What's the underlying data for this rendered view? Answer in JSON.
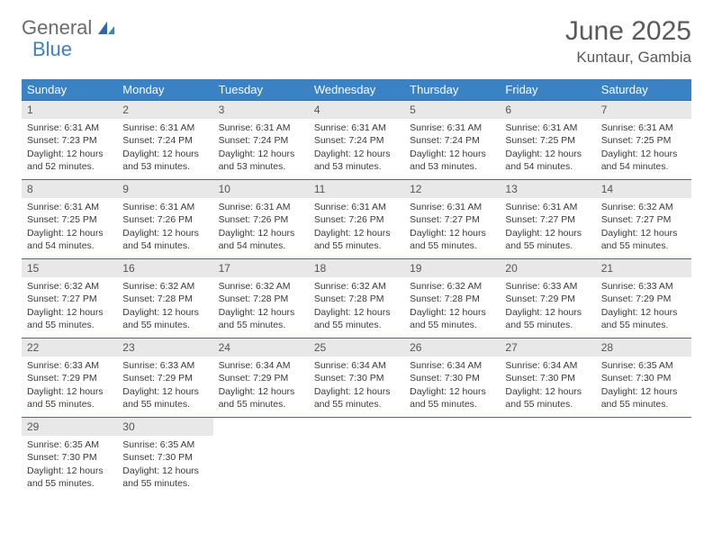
{
  "brand": {
    "word1": "General",
    "word2": "Blue"
  },
  "title": "June 2025",
  "location": "Kuntaur, Gambia",
  "colors": {
    "header_bg": "#3b82c4",
    "header_fg": "#ffffff",
    "daynum_bg": "#e8e8e8",
    "row_border": "#3b6da0",
    "text": "#3a3a3a"
  },
  "weekdays": [
    "Sunday",
    "Monday",
    "Tuesday",
    "Wednesday",
    "Thursday",
    "Friday",
    "Saturday"
  ],
  "weeks": [
    [
      {
        "n": "1",
        "sr": "6:31 AM",
        "ss": "7:23 PM",
        "dl": "12 hours and 52 minutes."
      },
      {
        "n": "2",
        "sr": "6:31 AM",
        "ss": "7:24 PM",
        "dl": "12 hours and 53 minutes."
      },
      {
        "n": "3",
        "sr": "6:31 AM",
        "ss": "7:24 PM",
        "dl": "12 hours and 53 minutes."
      },
      {
        "n": "4",
        "sr": "6:31 AM",
        "ss": "7:24 PM",
        "dl": "12 hours and 53 minutes."
      },
      {
        "n": "5",
        "sr": "6:31 AM",
        "ss": "7:24 PM",
        "dl": "12 hours and 53 minutes."
      },
      {
        "n": "6",
        "sr": "6:31 AM",
        "ss": "7:25 PM",
        "dl": "12 hours and 54 minutes."
      },
      {
        "n": "7",
        "sr": "6:31 AM",
        "ss": "7:25 PM",
        "dl": "12 hours and 54 minutes."
      }
    ],
    [
      {
        "n": "8",
        "sr": "6:31 AM",
        "ss": "7:25 PM",
        "dl": "12 hours and 54 minutes."
      },
      {
        "n": "9",
        "sr": "6:31 AM",
        "ss": "7:26 PM",
        "dl": "12 hours and 54 minutes."
      },
      {
        "n": "10",
        "sr": "6:31 AM",
        "ss": "7:26 PM",
        "dl": "12 hours and 54 minutes."
      },
      {
        "n": "11",
        "sr": "6:31 AM",
        "ss": "7:26 PM",
        "dl": "12 hours and 55 minutes."
      },
      {
        "n": "12",
        "sr": "6:31 AM",
        "ss": "7:27 PM",
        "dl": "12 hours and 55 minutes."
      },
      {
        "n": "13",
        "sr": "6:31 AM",
        "ss": "7:27 PM",
        "dl": "12 hours and 55 minutes."
      },
      {
        "n": "14",
        "sr": "6:32 AM",
        "ss": "7:27 PM",
        "dl": "12 hours and 55 minutes."
      }
    ],
    [
      {
        "n": "15",
        "sr": "6:32 AM",
        "ss": "7:27 PM",
        "dl": "12 hours and 55 minutes."
      },
      {
        "n": "16",
        "sr": "6:32 AM",
        "ss": "7:28 PM",
        "dl": "12 hours and 55 minutes."
      },
      {
        "n": "17",
        "sr": "6:32 AM",
        "ss": "7:28 PM",
        "dl": "12 hours and 55 minutes."
      },
      {
        "n": "18",
        "sr": "6:32 AM",
        "ss": "7:28 PM",
        "dl": "12 hours and 55 minutes."
      },
      {
        "n": "19",
        "sr": "6:32 AM",
        "ss": "7:28 PM",
        "dl": "12 hours and 55 minutes."
      },
      {
        "n": "20",
        "sr": "6:33 AM",
        "ss": "7:29 PM",
        "dl": "12 hours and 55 minutes."
      },
      {
        "n": "21",
        "sr": "6:33 AM",
        "ss": "7:29 PM",
        "dl": "12 hours and 55 minutes."
      }
    ],
    [
      {
        "n": "22",
        "sr": "6:33 AM",
        "ss": "7:29 PM",
        "dl": "12 hours and 55 minutes."
      },
      {
        "n": "23",
        "sr": "6:33 AM",
        "ss": "7:29 PM",
        "dl": "12 hours and 55 minutes."
      },
      {
        "n": "24",
        "sr": "6:34 AM",
        "ss": "7:29 PM",
        "dl": "12 hours and 55 minutes."
      },
      {
        "n": "25",
        "sr": "6:34 AM",
        "ss": "7:30 PM",
        "dl": "12 hours and 55 minutes."
      },
      {
        "n": "26",
        "sr": "6:34 AM",
        "ss": "7:30 PM",
        "dl": "12 hours and 55 minutes."
      },
      {
        "n": "27",
        "sr": "6:34 AM",
        "ss": "7:30 PM",
        "dl": "12 hours and 55 minutes."
      },
      {
        "n": "28",
        "sr": "6:35 AM",
        "ss": "7:30 PM",
        "dl": "12 hours and 55 minutes."
      }
    ],
    [
      {
        "n": "29",
        "sr": "6:35 AM",
        "ss": "7:30 PM",
        "dl": "12 hours and 55 minutes."
      },
      {
        "n": "30",
        "sr": "6:35 AM",
        "ss": "7:30 PM",
        "dl": "12 hours and 55 minutes."
      },
      null,
      null,
      null,
      null,
      null
    ]
  ],
  "labels": {
    "sunrise": "Sunrise: ",
    "sunset": "Sunset: ",
    "daylight": "Daylight: "
  }
}
